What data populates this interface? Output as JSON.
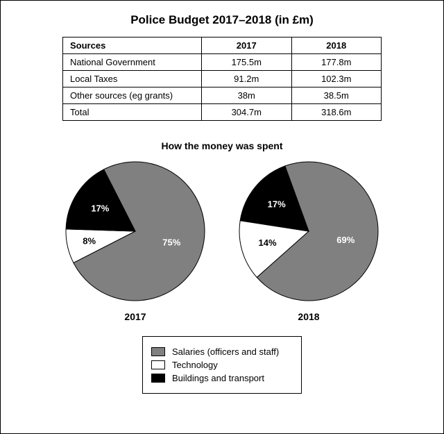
{
  "title": "Police Budget 2017–2018 (in £m)",
  "table": {
    "columns": [
      "Sources",
      "2017",
      "2018"
    ],
    "rows": [
      [
        "National Government",
        "175.5m",
        "177.8m"
      ],
      [
        "Local Taxes",
        "91.2m",
        "102.3m"
      ],
      [
        "Other sources (eg grants)",
        "38m",
        "38.5m"
      ],
      [
        "Total",
        "304.7m",
        "318.6m"
      ]
    ]
  },
  "pies": {
    "title": "How the money was spent",
    "radius": 100,
    "label_fontsize": 13,
    "year_fontsize": 14,
    "charts": [
      {
        "year": "2017",
        "start_angle_deg": -27,
        "slices": [
          {
            "label": "75%",
            "value": 75,
            "color": "#808080",
            "text_color": "#ffffff",
            "label_r": 0.55
          },
          {
            "label": "8%",
            "value": 8,
            "color": "#ffffff",
            "text_color": "#000000",
            "label_r": 0.68
          },
          {
            "label": "17%",
            "value": 17,
            "color": "#000000",
            "text_color": "#ffffff",
            "label_r": 0.6
          }
        ]
      },
      {
        "year": "2018",
        "start_angle_deg": -20,
        "slices": [
          {
            "label": "69%",
            "value": 69,
            "color": "#808080",
            "text_color": "#ffffff",
            "label_r": 0.55
          },
          {
            "label": "14%",
            "value": 14,
            "color": "#ffffff",
            "text_color": "#000000",
            "label_r": 0.62
          },
          {
            "label": "17%",
            "value": 17,
            "color": "#000000",
            "text_color": "#ffffff",
            "label_r": 0.6
          }
        ]
      }
    ]
  },
  "legend": {
    "items": [
      {
        "color": "#808080",
        "label": "Salaries (officers and staff)"
      },
      {
        "color": "#ffffff",
        "label": "Technology"
      },
      {
        "color": "#000000",
        "label": "Buildings and transport"
      }
    ]
  },
  "stroke_color": "#000000",
  "background_color": "#ffffff"
}
